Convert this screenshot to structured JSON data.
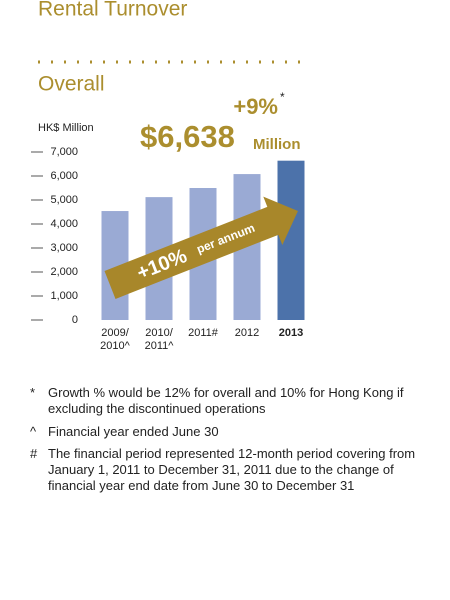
{
  "header": {
    "title": "Rental Turnover",
    "subtitle": "Overall"
  },
  "chart_data": {
    "type": "bar",
    "y_label": "HK$ Million",
    "categories": [
      "2009/\n2010^",
      "2010/\n2011^",
      "2011#",
      "2012",
      "2013"
    ],
    "values": [
      4540,
      5120,
      5500,
      6080,
      6638
    ],
    "colors": [
      "#9aaad4",
      "#9aaad4",
      "#9aaad4",
      "#9aaad4",
      "#4c72aa"
    ],
    "ylim": [
      0,
      7000
    ],
    "yticks": [
      0,
      {
        "value": 1000,
        "label": "1,000"
      },
      {
        "value": 2000,
        "label": "2,000"
      },
      {
        "value": 3000,
        "label": "3,000"
      },
      {
        "value": 4000,
        "label": "4,000"
      },
      {
        "value": 5000,
        "label": "5,000"
      },
      {
        "value": 6000,
        "label": "6,000"
      },
      {
        "value": 7000,
        "label": "7,000"
      }
    ],
    "highlight": {
      "amount": "$6,638",
      "unit": "Million",
      "growth": "+9%",
      "growth_mark": "*"
    },
    "annotation": {
      "rate": "+10%",
      "period": "per annum"
    }
  },
  "footnotes": [
    {
      "mark": "*",
      "text": "Growth % would be 12% for overall and 10% for Hong Kong if excluding the discontinued operations"
    },
    {
      "mark": "^",
      "text": "Financial year ended June 30"
    },
    {
      "mark": "#",
      "text": "The financial period represented 12-month period covering from January 1, 2011 to December 31, 2011 due to the change of financial year end date from June 30 to December 31"
    }
  ]
}
